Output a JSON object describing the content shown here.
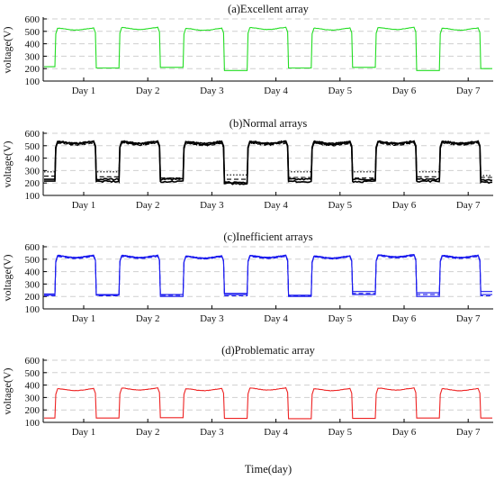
{
  "figure": {
    "xlabel": "Time(day)"
  },
  "chart_data": [
    {
      "type": "line",
      "title": "(a)Excellent array",
      "ylabel": "voltage(V)",
      "ylim": [
        100,
        600
      ],
      "yticks": [
        100,
        200,
        300,
        400,
        500,
        600
      ],
      "categories": [
        "Day 1",
        "Day 2",
        "Day 3",
        "Day 4",
        "Day 5",
        "Day 6",
        "Day 7"
      ],
      "grid": "horizontal dashed",
      "color": "#22dd22",
      "series": [
        {
          "day_level": [
            520,
            525,
            518,
            525,
            520,
            525,
            520
          ],
          "night_level": [
            215,
            205,
            210,
            185,
            205,
            210,
            185,
            200
          ]
        }
      ]
    },
    {
      "type": "line",
      "title": "(b)Normal arrays",
      "ylabel": "voltage(V)",
      "ylim": [
        100,
        600
      ],
      "yticks": [
        100,
        200,
        300,
        400,
        500,
        600
      ],
      "categories": [
        "Day 1",
        "Day 2",
        "Day 3",
        "Day 4",
        "Day 5",
        "Day 6",
        "Day 7"
      ],
      "grid": "horizontal dashed",
      "color": "#000000",
      "series": [
        {
          "day_level": [
            525,
            525,
            520,
            525,
            520,
            525,
            525
          ],
          "night_level": [
            230,
            230,
            230,
            205,
            230,
            230,
            230,
            220
          ]
        },
        {
          "day_level": [
            530,
            530,
            528,
            530,
            528,
            530,
            530
          ],
          "night_level": [
            215,
            212,
            212,
            195,
            212,
            212,
            215,
            205
          ]
        },
        {
          "day_level": [
            520,
            520,
            515,
            520,
            515,
            520,
            520
          ],
          "night_level": [
            290,
            290,
            240,
            265,
            290,
            290,
            290,
            260
          ],
          "style": "dotted"
        },
        {
          "day_level": [
            515,
            515,
            512,
            515,
            512,
            515,
            515
          ],
          "night_level": [
            255,
            250,
            240,
            230,
            245,
            240,
            250,
            245
          ],
          "style": "dashed"
        }
      ]
    },
    {
      "type": "line",
      "title": "(c)Inefficient arrays",
      "ylabel": "voltage(V)",
      "ylim": [
        100,
        600
      ],
      "yticks": [
        100,
        200,
        300,
        400,
        500,
        600
      ],
      "categories": [
        "Day 1",
        "Day 2",
        "Day 3",
        "Day 4",
        "Day 5",
        "Day 6",
        "Day 7"
      ],
      "grid": "horizontal dashed",
      "color": "#1a1aee",
      "series": [
        {
          "day_level": [
            525,
            525,
            520,
            525,
            520,
            530,
            525
          ],
          "night_level": [
            210,
            210,
            200,
            215,
            200,
            215,
            200,
            215
          ]
        },
        {
          "day_level": [
            520,
            520,
            515,
            520,
            515,
            525,
            520
          ],
          "night_level": [
            220,
            215,
            215,
            225,
            210,
            240,
            230,
            240
          ]
        },
        {
          "day_level": [
            515,
            515,
            512,
            515,
            512,
            520,
            515
          ],
          "night_level": [
            205,
            205,
            210,
            205,
            205,
            225,
            215,
            205
          ],
          "style": "dashed"
        }
      ]
    },
    {
      "type": "line",
      "title": "(d)Problematic array",
      "ylabel": "voltage(V)",
      "ylim": [
        100,
        600
      ],
      "yticks": [
        100,
        200,
        300,
        400,
        500,
        600
      ],
      "categories": [
        "Day 1",
        "Day 2",
        "Day 3",
        "Day 4",
        "Day 5",
        "Day 6",
        "Day 7"
      ],
      "grid": "horizontal dashed",
      "color": "#ee2222",
      "series": [
        {
          "day_level": [
            365,
            370,
            365,
            370,
            365,
            370,
            365
          ],
          "night_level": [
            135,
            135,
            138,
            132,
            130,
            132,
            135,
            135
          ]
        }
      ]
    }
  ]
}
